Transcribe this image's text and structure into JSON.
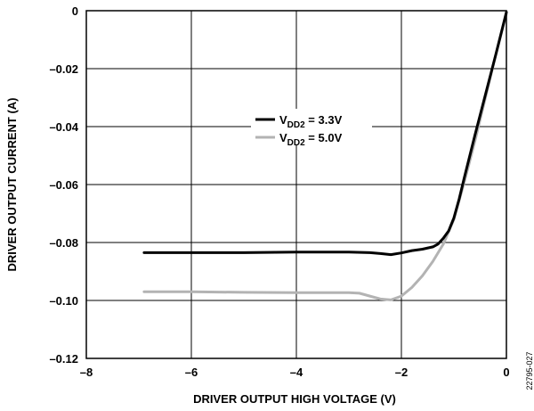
{
  "figure_id": "22795-027",
  "chart_data": {
    "type": "line",
    "xlabel": "DRIVER OUTPUT HIGH VOLTAGE (V)",
    "ylabel": "DRIVER OUTPUT CURRENT (A)",
    "xlim": [
      -8,
      0
    ],
    "ylim": [
      -0.12,
      0
    ],
    "x_ticks": [
      -8,
      -6,
      -4,
      -2,
      0
    ],
    "y_ticks": [
      0,
      -0.02,
      -0.04,
      -0.06,
      -0.08,
      -0.1,
      -0.12
    ],
    "x_tick_labels": [
      "–8",
      "–6",
      "–4",
      "–2",
      "0"
    ],
    "y_tick_labels": [
      "0",
      "–0.02",
      "–0.04",
      "–0.06",
      "–0.08",
      "–0.10",
      "–0.12"
    ],
    "grid": true,
    "legend_position": "center",
    "series": [
      {
        "name": "VDD2 = 3.3V",
        "label_main": "V",
        "label_sub": "DD2",
        "label_rest": " = 3.3V",
        "color": "#000000",
        "x": [
          -6.9,
          -6.0,
          -5.0,
          -4.0,
          -3.0,
          -2.6,
          -2.4,
          -2.2,
          -2.0,
          -1.8,
          -1.6,
          -1.4,
          -1.3,
          -1.2,
          -1.1,
          -1.0,
          -0.9,
          -0.8,
          -0.6,
          -0.4,
          -0.2,
          0.0
        ],
        "y": [
          -0.0835,
          -0.0835,
          -0.0835,
          -0.0833,
          -0.0833,
          -0.0835,
          -0.0838,
          -0.0842,
          -0.0836,
          -0.0828,
          -0.0823,
          -0.0815,
          -0.0805,
          -0.0785,
          -0.076,
          -0.0715,
          -0.065,
          -0.0575,
          -0.043,
          -0.029,
          -0.015,
          -0.0005
        ]
      },
      {
        "name": "VDD2 = 5.0V",
        "label_main": "V",
        "label_sub": "DD2",
        "label_rest": " = 5.0V",
        "color": "#b3b3b3",
        "x": [
          -6.9,
          -6.0,
          -5.0,
          -4.0,
          -3.0,
          -2.8,
          -2.6,
          -2.4,
          -2.2,
          -2.0,
          -1.8,
          -1.6,
          -1.4,
          -1.2,
          -1.0,
          -0.8,
          -0.6,
          -0.4,
          -0.2,
          0.0
        ],
        "y": [
          -0.097,
          -0.097,
          -0.0972,
          -0.0973,
          -0.0973,
          -0.0975,
          -0.0985,
          -0.0995,
          -0.0998,
          -0.0985,
          -0.0955,
          -0.0915,
          -0.0865,
          -0.0805,
          -0.072,
          -0.059,
          -0.045,
          -0.03,
          -0.015,
          -0.001
        ]
      }
    ]
  }
}
